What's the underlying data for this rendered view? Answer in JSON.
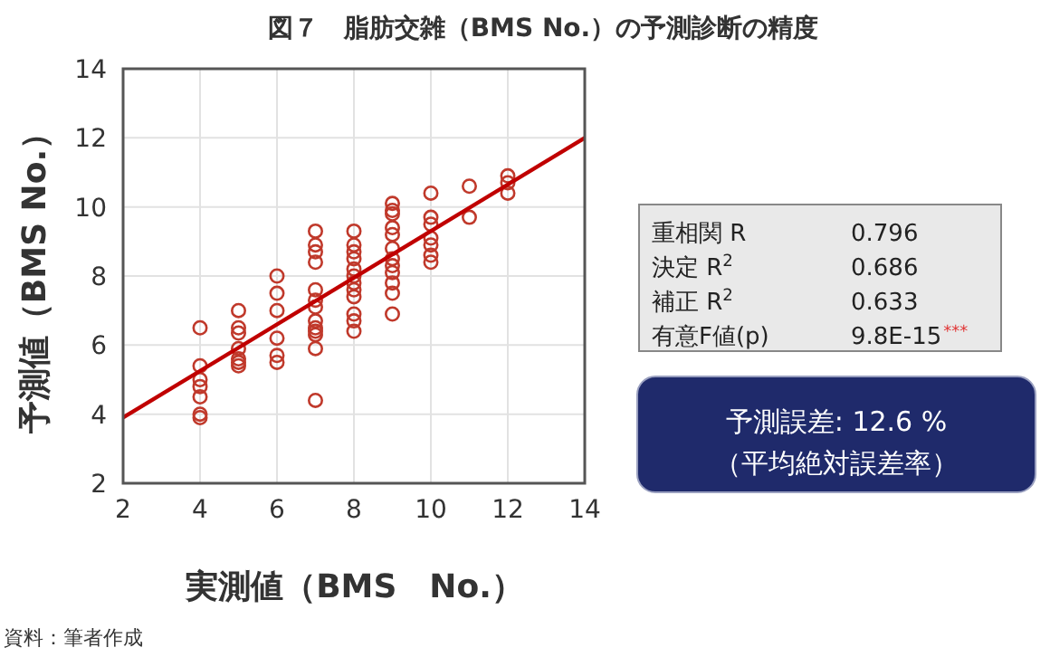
{
  "chart_data": {
    "type": "scatter",
    "title": "図７　脂肪交雑（BMS No.）の予測診断の精度",
    "xlabel": "実測値（BMS　No.）",
    "ylabel": "予測値（BMS No.）",
    "xlim": [
      2,
      14
    ],
    "ylim": [
      2,
      14
    ],
    "xticks": [
      2,
      4,
      6,
      8,
      10,
      12,
      14
    ],
    "yticks": [
      2,
      4,
      6,
      8,
      10,
      12,
      14
    ],
    "grid": true,
    "series": [
      {
        "marker": "circle",
        "color": "#c0392b",
        "x": [
          4,
          4,
          4,
          4,
          4,
          4,
          4,
          5,
          5,
          5,
          5,
          5,
          5,
          5,
          6,
          6,
          6,
          6,
          6,
          6,
          7,
          7,
          7,
          7,
          7,
          7,
          7,
          7,
          7,
          7,
          7,
          7,
          7,
          8,
          8,
          8,
          8,
          8,
          8,
          8,
          8,
          8,
          8,
          8,
          8,
          9,
          9,
          9,
          9,
          9,
          9,
          9,
          9,
          9,
          9,
          9,
          9,
          10,
          10,
          10,
          10,
          10,
          10,
          10,
          11,
          11,
          12,
          12,
          12
        ],
        "values": [
          6.5,
          5.4,
          5.0,
          4.8,
          4.5,
          4.0,
          3.9,
          7.0,
          6.5,
          6.35,
          5.9,
          5.6,
          5.5,
          5.4,
          8.0,
          7.5,
          7.0,
          6.2,
          5.7,
          5.5,
          9.3,
          8.9,
          8.7,
          8.4,
          7.6,
          7.3,
          7.1,
          6.7,
          6.5,
          6.4,
          6.3,
          5.9,
          4.4,
          9.3,
          8.9,
          8.7,
          8.5,
          8.2,
          8.0,
          7.8,
          7.6,
          7.4,
          6.9,
          6.7,
          6.4,
          10.1,
          9.9,
          9.8,
          9.4,
          9.2,
          8.8,
          8.5,
          8.3,
          8.1,
          7.8,
          7.5,
          6.9,
          10.4,
          9.7,
          9.5,
          9.1,
          8.9,
          8.6,
          8.4,
          10.6,
          9.7,
          10.9,
          10.7,
          10.4
        ]
      },
      {
        "type": "line",
        "color": "#c00000",
        "x": [
          2,
          14
        ],
        "values": [
          3.9,
          12.0
        ]
      }
    ],
    "annotations": [
      "重相関 R",
      "0.796",
      "決定 R$^{2}$",
      "0.686",
      "補正 R$^{2}$",
      "0.633",
      "有意F値(p)",
      "9.8E-15",
      "***",
      "予測誤差: 12.6 %",
      "（平均絶対誤差率）",
      "資料：筆者作成"
    ]
  }
}
